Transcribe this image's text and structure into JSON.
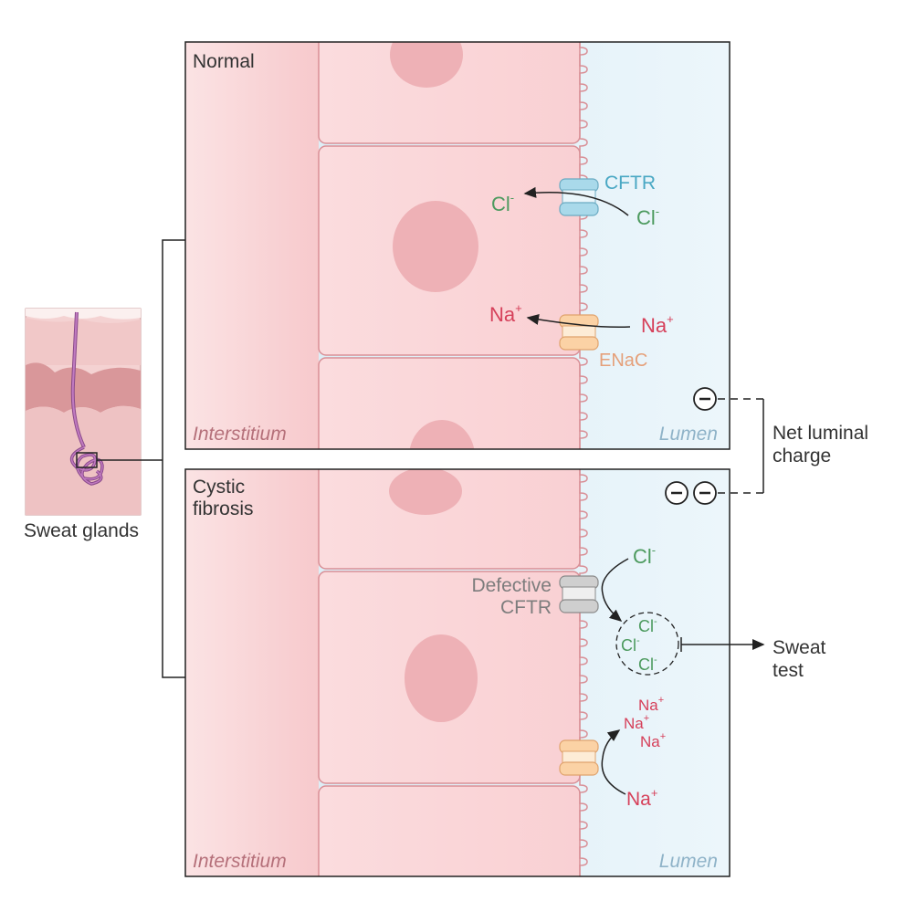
{
  "skin_inset": {
    "label": "Sweat glands"
  },
  "normal_panel": {
    "title": "Normal",
    "interstitium": "Interstitium",
    "lumen": "Lumen",
    "cftr_label": "CFTR",
    "enac_label": "ENaC",
    "cl_inside": "Cl",
    "cl_outside": "Cl",
    "na_inside": "Na",
    "na_outside": "Na",
    "cl_charge": "-",
    "na_charge": "+"
  },
  "cf_panel": {
    "title_line1": "Cystic",
    "title_line2": "fibrosis",
    "interstitium": "Interstitium",
    "lumen": "Lumen",
    "defective_line1": "Defective",
    "defective_line2": "CFTR",
    "cl_top": "Cl",
    "cl_cluster": [
      "Cl",
      "Cl",
      "Cl"
    ],
    "na_bottom": "Na",
    "na_cluster": [
      "Na",
      "Na",
      "Na"
    ],
    "cl_charge": "-",
    "na_charge": "+"
  },
  "net_charge": {
    "line1": "Net luminal",
    "line2": "charge"
  },
  "sweat_test": {
    "line1": "Sweat",
    "line2": "test"
  },
  "colors": {
    "cell": "#f9d3d5",
    "cell_stroke": "#d98f96",
    "lumen": "#e4f1f8",
    "nucleus": "#eeb1b6",
    "chloride": "#4c9a5e",
    "sodium": "#d6405a",
    "cftr": "#a9d9ea",
    "enac": "#fbd2a5",
    "defective": "#d4d4d4"
  }
}
